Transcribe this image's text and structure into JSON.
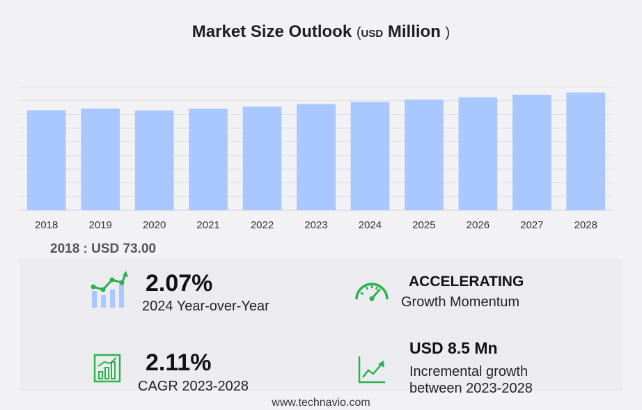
{
  "header": {
    "title": "Market Size Outlook",
    "unit_open": "(",
    "unit_small": "USD",
    "unit_big": "Million",
    "unit_close": ")"
  },
  "chart_data": {
    "type": "bar",
    "categories": [
      "2018",
      "2019",
      "2020",
      "2021",
      "2022",
      "2023",
      "2024",
      "2025",
      "2026",
      "2027",
      "2028"
    ],
    "values": [
      73.0,
      74.3,
      72.9,
      74.2,
      75.7,
      77.5,
      79.1,
      80.8,
      82.5,
      84.4,
      86.0
    ],
    "ylim": [
      0,
      90
    ],
    "grid": true,
    "bar_color": "#a8c8ff"
  },
  "base_value": {
    "label": "2018 : USD  73.00"
  },
  "kpis": {
    "yoy": {
      "value": "2.07%",
      "label": "2024 Year-over-Year",
      "icon": "growth-chart-icon"
    },
    "momentum": {
      "value": "ACCELERATING",
      "label": "Growth Momentum",
      "icon": "speedometer-icon"
    },
    "cagr": {
      "value": "2.11%",
      "label": "CAGR 2023-2028",
      "icon": "bar-chart-icon"
    },
    "incremental": {
      "value": "USD 8.5 Mn",
      "label_line1": "Incremental growth",
      "label_line2": "between 2023-2028",
      "icon": "trend-line-icon"
    }
  },
  "colors": {
    "accent_green": "#2bb24c",
    "bar": "#a8c8ff"
  },
  "footer": {
    "text": "www.technavio.com"
  }
}
